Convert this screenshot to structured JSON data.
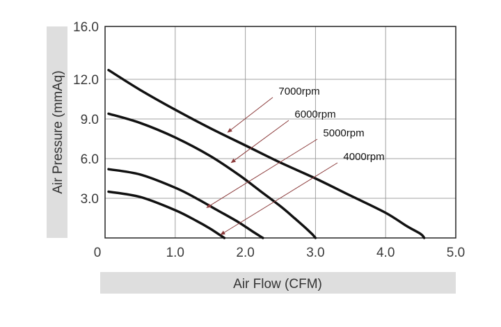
{
  "chart_data": {
    "type": "line",
    "title": "",
    "xlabel": "Air Flow (CFM)",
    "ylabel": "Air Pressure (mmAq)",
    "xlim": [
      0,
      5.0
    ],
    "ylim": [
      0,
      16.0
    ],
    "xticks": [
      0,
      1.0,
      2.0,
      3.0,
      4.0,
      5.0
    ],
    "xtick_labels": [
      "0",
      "1.0",
      "2.0",
      "3.0",
      "4.0",
      "5.0"
    ],
    "yticks": [
      3.0,
      6.0,
      9.0,
      12.0,
      16.0
    ],
    "ytick_labels": [
      "3.0",
      "6.0",
      "9.0",
      "12.0",
      "16.0"
    ],
    "grid": true,
    "colors": {
      "curve": "#111111",
      "grid": "#a0a0a0",
      "frame": "#222222",
      "arrow": "#8b3a3a",
      "label_band": "#dedede"
    },
    "series": [
      {
        "name": "7000rpm",
        "x": [
          0.05,
          0.5,
          1.0,
          1.5,
          2.0,
          2.5,
          3.0,
          3.5,
          4.0,
          4.3,
          4.5,
          4.55
        ],
        "y": [
          12.7,
          11.2,
          9.7,
          8.3,
          7.0,
          5.7,
          4.5,
          3.2,
          1.9,
          0.9,
          0.3,
          0.0
        ]
      },
      {
        "name": "6000rpm",
        "x": [
          0.05,
          0.5,
          1.0,
          1.5,
          1.9,
          2.2,
          2.5,
          2.7,
          2.85,
          2.95,
          3.0
        ],
        "y": [
          9.4,
          8.7,
          7.6,
          6.2,
          4.8,
          3.6,
          2.4,
          1.5,
          0.8,
          0.3,
          0.0
        ]
      },
      {
        "name": "5000rpm",
        "x": [
          0.05,
          0.5,
          1.0,
          1.3,
          1.6,
          1.9,
          2.1,
          2.25
        ],
        "y": [
          5.2,
          4.8,
          3.8,
          3.0,
          2.1,
          1.2,
          0.5,
          0.0
        ]
      },
      {
        "name": "4000rpm",
        "x": [
          0.05,
          0.5,
          1.0,
          1.3,
          1.5,
          1.7
        ],
        "y": [
          3.5,
          3.1,
          2.1,
          1.3,
          0.7,
          0.0
        ]
      }
    ],
    "annotations": [
      {
        "text": "7000rpm",
        "series": 0,
        "arrow_x": 1.75,
        "arrow_y": 8.0
      },
      {
        "text": "6000rpm",
        "series": 1,
        "arrow_x": 1.8,
        "arrow_y": 5.7
      },
      {
        "text": "5000rpm",
        "series": 2,
        "arrow_x": 1.45,
        "arrow_y": 2.3
      },
      {
        "text": "4000rpm",
        "series": 3,
        "arrow_x": 1.65,
        "arrow_y": 0.25
      }
    ]
  }
}
